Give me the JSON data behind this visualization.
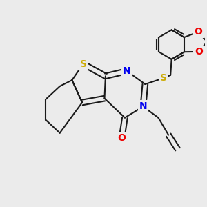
{
  "background_color": "#ebebeb",
  "bond_color": "#1a1a1a",
  "S_color": "#ccaa00",
  "N_color": "#0000ee",
  "O_color": "#ee0000",
  "bond_width": 1.5,
  "figsize": [
    3.0,
    3.0
  ],
  "dpi": 100,
  "xlim": [
    -4.5,
    5.5
  ],
  "ylim": [
    -4.0,
    4.5
  ]
}
